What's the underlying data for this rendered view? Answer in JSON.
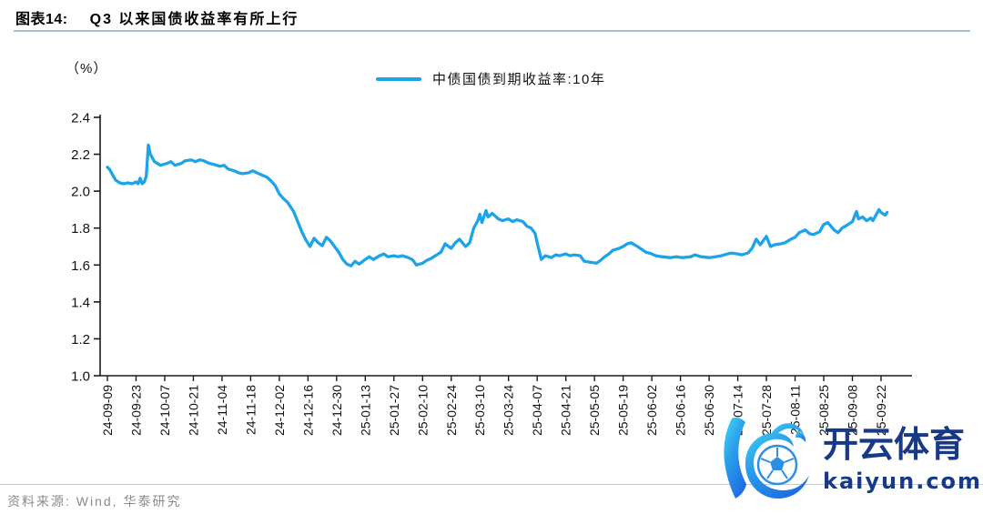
{
  "header": {
    "figure_label": "图表14:",
    "title": "Q3 以来国债收益率有所上行"
  },
  "chart_data": {
    "type": "line",
    "title": "Q3 以来国债收益率有所上行",
    "unit_label": "（%）",
    "grid": false,
    "legend_position": "top-center",
    "ylim": [
      1.0,
      2.4
    ],
    "y_ticks": [
      "2.4",
      "2.2",
      "2.0",
      "1.8",
      "1.6",
      "1.4",
      "1.2",
      "1.0"
    ],
    "x_tick_interval_days": 14,
    "x_tick_labels": [
      "24-09-09",
      "24-09-23",
      "24-10-07",
      "24-10-21",
      "24-11-04",
      "24-11-18",
      "24-12-02",
      "24-12-16",
      "24-12-30",
      "25-01-13",
      "25-01-27",
      "25-02-10",
      "25-02-24",
      "25-03-10",
      "25-03-24",
      "25-04-07",
      "25-04-21",
      "25-05-05",
      "25-05-19",
      "25-06-02",
      "25-06-16",
      "25-06-30",
      "25-07-14",
      "25-07-28",
      "25-08-11",
      "25-08-25",
      "25-09-08",
      "25-09-22"
    ],
    "series": [
      {
        "name": "中债国债到期收益率:10年",
        "color": "#1ba4e9",
        "points": [
          [
            0,
            2.13
          ],
          [
            1,
            2.12
          ],
          [
            2,
            2.1
          ],
          [
            3,
            2.08
          ],
          [
            4,
            2.06
          ],
          [
            6,
            2.045
          ],
          [
            8,
            2.04
          ],
          [
            10,
            2.045
          ],
          [
            12,
            2.04
          ],
          [
            14,
            2.05
          ],
          [
            15,
            2.04
          ],
          [
            16,
            2.07
          ],
          [
            17,
            2.04
          ],
          [
            18,
            2.05
          ],
          [
            19,
            2.08
          ],
          [
            20,
            2.25
          ],
          [
            21,
            2.2
          ],
          [
            23,
            2.16
          ],
          [
            26,
            2.14
          ],
          [
            29,
            2.15
          ],
          [
            31,
            2.16
          ],
          [
            33,
            2.14
          ],
          [
            36,
            2.15
          ],
          [
            38,
            2.165
          ],
          [
            41,
            2.17
          ],
          [
            43,
            2.16
          ],
          [
            45,
            2.17
          ],
          [
            47,
            2.165
          ],
          [
            50,
            2.15
          ],
          [
            52,
            2.145
          ],
          [
            55,
            2.135
          ],
          [
            57,
            2.14
          ],
          [
            59,
            2.12
          ],
          [
            62,
            2.11
          ],
          [
            64,
            2.1
          ],
          [
            66,
            2.095
          ],
          [
            69,
            2.1
          ],
          [
            71,
            2.11
          ],
          [
            73,
            2.1
          ],
          [
            76,
            2.085
          ],
          [
            78,
            2.075
          ],
          [
            80,
            2.055
          ],
          [
            82,
            2.03
          ],
          [
            84,
            1.985
          ],
          [
            86,
            1.96
          ],
          [
            88,
            1.94
          ],
          [
            91,
            1.89
          ],
          [
            93,
            1.835
          ],
          [
            95,
            1.78
          ],
          [
            97,
            1.735
          ],
          [
            99,
            1.7
          ],
          [
            101,
            1.745
          ],
          [
            103,
            1.72
          ],
          [
            105,
            1.705
          ],
          [
            107,
            1.75
          ],
          [
            109,
            1.73
          ],
          [
            111,
            1.7
          ],
          [
            113,
            1.67
          ],
          [
            115,
            1.63
          ],
          [
            117,
            1.605
          ],
          [
            119,
            1.595
          ],
          [
            121,
            1.62
          ],
          [
            123,
            1.605
          ],
          [
            126,
            1.63
          ],
          [
            128,
            1.645
          ],
          [
            130,
            1.63
          ],
          [
            133,
            1.65
          ],
          [
            135,
            1.66
          ],
          [
            137,
            1.645
          ],
          [
            140,
            1.65
          ],
          [
            142,
            1.645
          ],
          [
            144,
            1.65
          ],
          [
            147,
            1.64
          ],
          [
            149,
            1.63
          ],
          [
            151,
            1.6
          ],
          [
            154,
            1.61
          ],
          [
            156,
            1.625
          ],
          [
            158,
            1.635
          ],
          [
            161,
            1.655
          ],
          [
            163,
            1.67
          ],
          [
            165,
            1.715
          ],
          [
            168,
            1.69
          ],
          [
            170,
            1.72
          ],
          [
            172,
            1.74
          ],
          [
            175,
            1.7
          ],
          [
            177,
            1.72
          ],
          [
            179,
            1.8
          ],
          [
            181,
            1.84
          ],
          [
            182,
            1.875
          ],
          [
            183,
            1.83
          ],
          [
            185,
            1.895
          ],
          [
            186,
            1.86
          ],
          [
            188,
            1.88
          ],
          [
            189,
            1.87
          ],
          [
            191,
            1.85
          ],
          [
            193,
            1.84
          ],
          [
            196,
            1.85
          ],
          [
            198,
            1.835
          ],
          [
            200,
            1.845
          ],
          [
            203,
            1.835
          ],
          [
            205,
            1.81
          ],
          [
            207,
            1.8
          ],
          [
            209,
            1.77
          ],
          [
            210,
            1.72
          ],
          [
            212,
            1.63
          ],
          [
            214,
            1.65
          ],
          [
            217,
            1.64
          ],
          [
            219,
            1.655
          ],
          [
            221,
            1.65
          ],
          [
            224,
            1.66
          ],
          [
            226,
            1.65
          ],
          [
            228,
            1.655
          ],
          [
            231,
            1.65
          ],
          [
            233,
            1.62
          ],
          [
            236,
            1.615
          ],
          [
            239,
            1.61
          ],
          [
            241,
            1.625
          ],
          [
            243,
            1.645
          ],
          [
            245,
            1.66
          ],
          [
            247,
            1.68
          ],
          [
            250,
            1.69
          ],
          [
            252,
            1.7
          ],
          [
            254,
            1.715
          ],
          [
            256,
            1.72
          ],
          [
            259,
            1.7
          ],
          [
            261,
            1.685
          ],
          [
            263,
            1.67
          ],
          [
            266,
            1.66
          ],
          [
            268,
            1.65
          ],
          [
            271,
            1.645
          ],
          [
            275,
            1.64
          ],
          [
            278,
            1.645
          ],
          [
            281,
            1.64
          ],
          [
            285,
            1.645
          ],
          [
            287,
            1.655
          ],
          [
            290,
            1.645
          ],
          [
            294,
            1.64
          ],
          [
            297,
            1.645
          ],
          [
            300,
            1.65
          ],
          [
            303,
            1.66
          ],
          [
            305,
            1.665
          ],
          [
            308,
            1.66
          ],
          [
            310,
            1.655
          ],
          [
            313,
            1.665
          ],
          [
            315,
            1.69
          ],
          [
            317,
            1.74
          ],
          [
            319,
            1.71
          ],
          [
            322,
            1.755
          ],
          [
            324,
            1.7
          ],
          [
            326,
            1.71
          ],
          [
            329,
            1.715
          ],
          [
            331,
            1.72
          ],
          [
            334,
            1.74
          ],
          [
            336,
            1.75
          ],
          [
            338,
            1.775
          ],
          [
            341,
            1.79
          ],
          [
            343,
            1.77
          ],
          [
            345,
            1.765
          ],
          [
            348,
            1.78
          ],
          [
            350,
            1.82
          ],
          [
            352,
            1.83
          ],
          [
            355,
            1.79
          ],
          [
            357,
            1.775
          ],
          [
            359,
            1.8
          ],
          [
            362,
            1.82
          ],
          [
            364,
            1.835
          ],
          [
            366,
            1.89
          ],
          [
            367,
            1.85
          ],
          [
            369,
            1.86
          ],
          [
            371,
            1.84
          ],
          [
            373,
            1.855
          ],
          [
            374,
            1.84
          ],
          [
            377,
            1.9
          ],
          [
            378,
            1.885
          ],
          [
            380,
            1.87
          ],
          [
            381,
            1.885
          ]
        ]
      }
    ]
  },
  "footer": {
    "source": "资料来源: Wind, 华泰研究"
  },
  "watermark": {
    "brand_cn": "开云体育",
    "brand_url": "kaiyun.com",
    "logo": "kaiyun-k-football-logo",
    "text_color": "#183a86",
    "gradient": [
      "#41d6f2",
      "#1f6fe3"
    ]
  },
  "style_colors": {
    "line": "#1ba4e9",
    "title_rule": "#a7bed8",
    "axis": "#1a1a1a",
    "source_text": "#8a8a8a"
  }
}
